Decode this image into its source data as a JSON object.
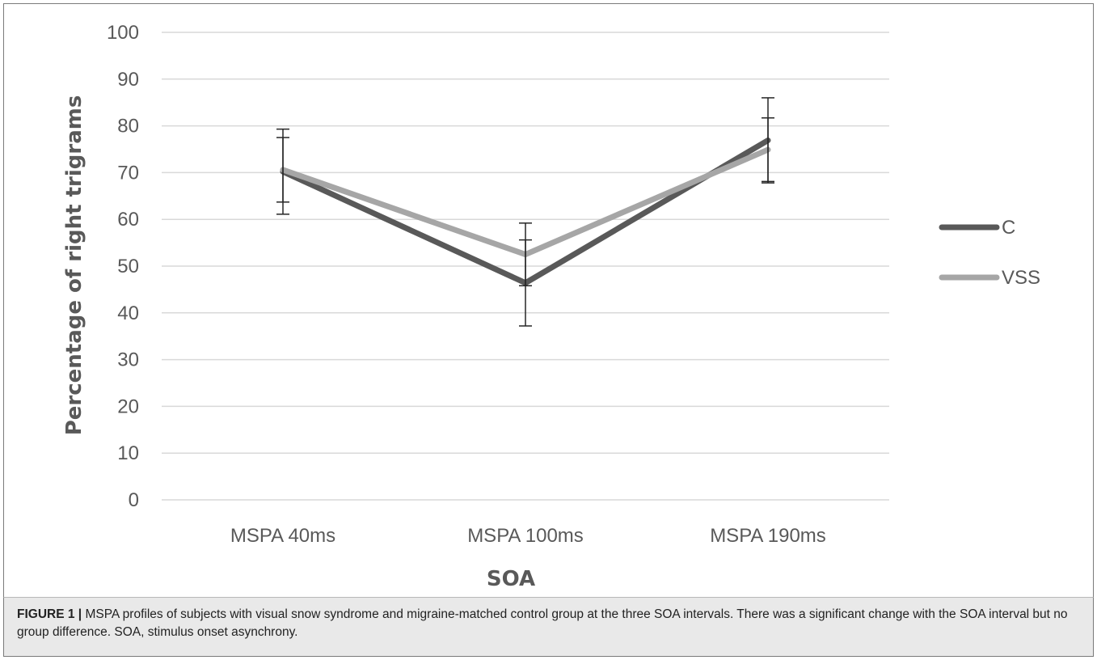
{
  "chart_data": {
    "type": "line",
    "categories": [
      "MSPA 40ms",
      "MSPA 100ms",
      "MSPA 190ms"
    ],
    "series": [
      {
        "name": "C",
        "values": [
          70.2,
          46.4,
          76.9
        ],
        "error_high": [
          79.3,
          55.6,
          86.0
        ],
        "error_low": [
          61.1,
          37.2,
          67.8
        ],
        "color": "#595959"
      },
      {
        "name": "VSS",
        "values": [
          70.6,
          52.5,
          74.9
        ],
        "error_high": [
          77.5,
          59.2,
          81.7
        ],
        "error_low": [
          63.7,
          45.8,
          68.1
        ],
        "color": "#a6a6a6"
      }
    ],
    "xlabel": "SOA",
    "ylabel": "Percentage of right trigrams",
    "ylim": [
      0,
      100
    ],
    "yticks": [
      0,
      10,
      20,
      30,
      40,
      50,
      60,
      70,
      80,
      90,
      100
    ],
    "grid": true,
    "legend_position": "right"
  },
  "caption": {
    "label": "FIGURE 1 |",
    "text": "MSPA profiles of subjects with visual snow syndrome and migraine-matched control group at the three SOA intervals. There was a significant change with the SOA interval but no group difference. SOA, stimulus onset asynchrony."
  },
  "colors": {
    "grid": "#d9d9d9",
    "text": "#595959",
    "caption_bg": "#e9e9e9"
  }
}
